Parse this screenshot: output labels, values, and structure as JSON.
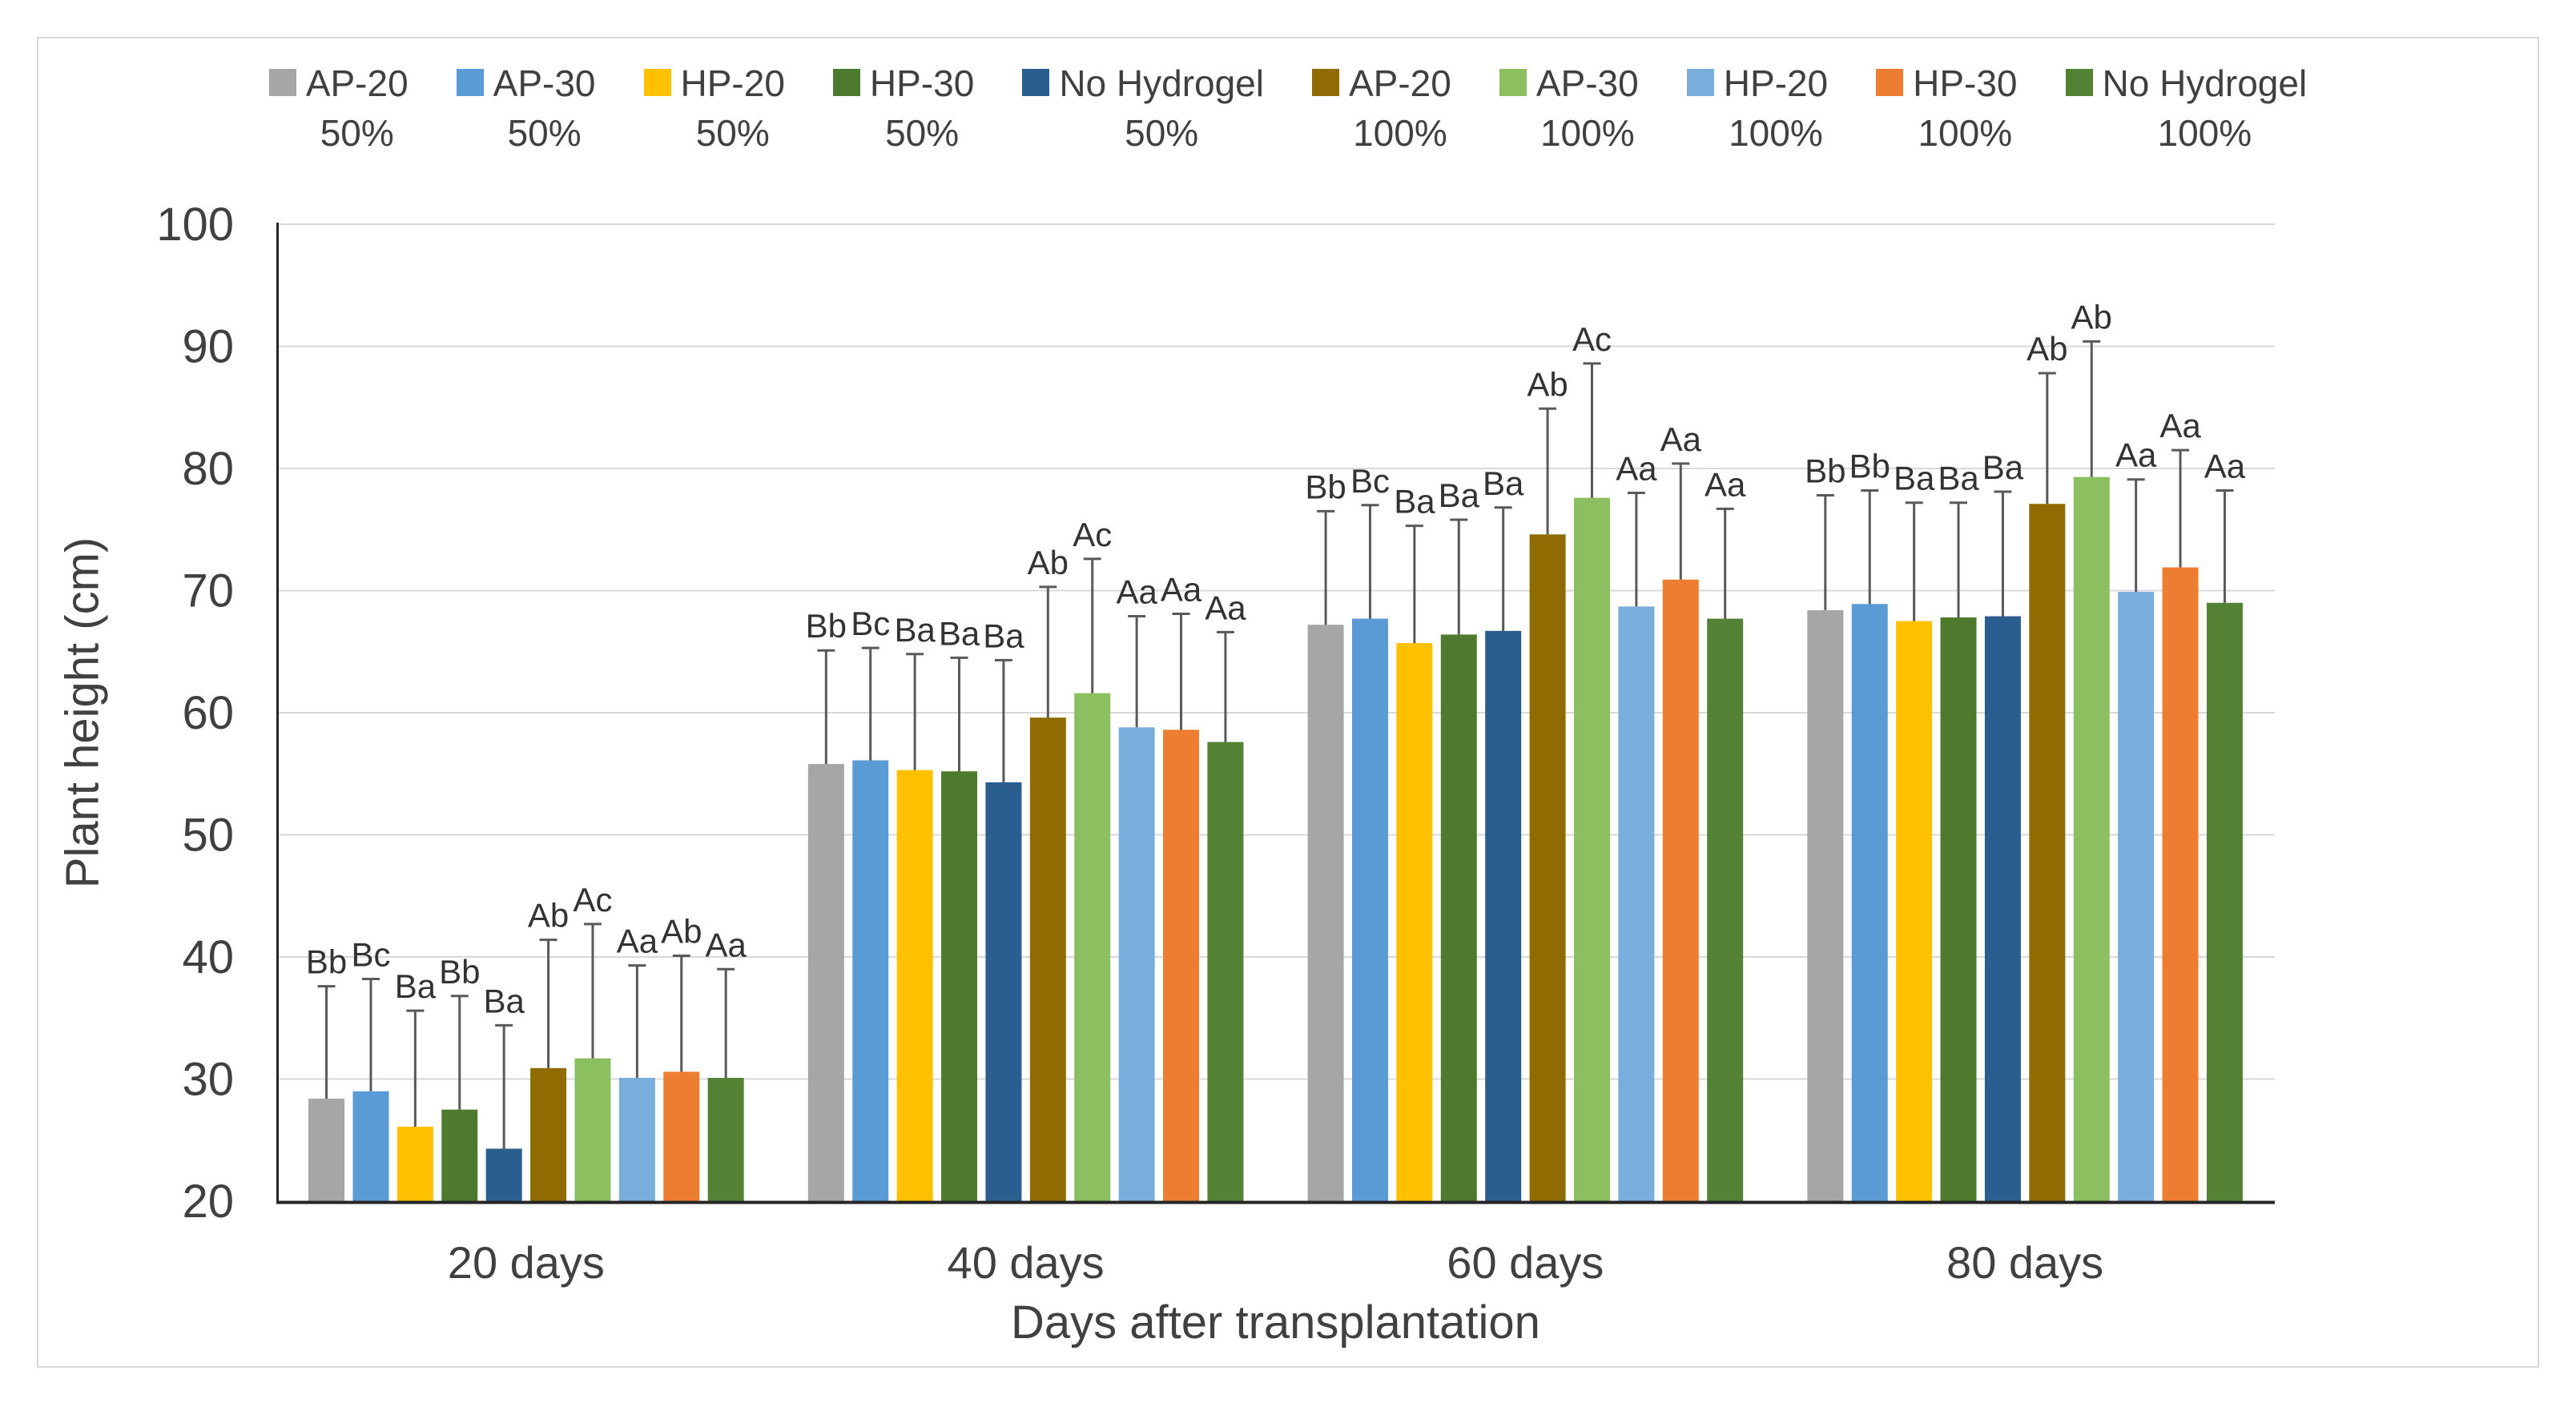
{
  "figure": {
    "background": "#FFFFFF",
    "border_color": "#D9D9D9"
  },
  "chart_data": {
    "type": "bar",
    "title": "",
    "xlabel": "Days after transplantation",
    "ylabel": "Plant height (cm)",
    "ylim": [
      20,
      100
    ],
    "y_ticks": [
      20,
      30,
      40,
      50,
      60,
      70,
      80,
      90,
      100
    ],
    "grid": "horizontal-major",
    "legend_position": "top",
    "error_bars": "plus-direction-with-cap",
    "categories": [
      "20 days",
      "40 days",
      "60 days",
      "80 days"
    ],
    "series": [
      {
        "name": "AP-20",
        "sub": "50%",
        "color": "#A6A6A6",
        "values": [
          28.4,
          55.8,
          67.2,
          68.4
        ],
        "errors": [
          9.2,
          9.3,
          9.3,
          9.4
        ],
        "letters": [
          "Bb",
          "Bb",
          "Bb",
          "Bb"
        ]
      },
      {
        "name": "AP-30",
        "sub": "50%",
        "color": "#5B9BD5",
        "values": [
          29.0,
          56.1,
          67.7,
          68.9
        ],
        "errors": [
          9.2,
          9.2,
          9.3,
          9.3
        ],
        "letters": [
          "Bc",
          "Bc",
          "Bc",
          "Bb"
        ]
      },
      {
        "name": "HP-20",
        "sub": "50%",
        "color": "#FFC000",
        "values": [
          26.1,
          55.3,
          65.7,
          67.5
        ],
        "errors": [
          9.5,
          9.5,
          9.6,
          9.7
        ],
        "letters": [
          "Ba",
          "Ba",
          "Ba",
          "Ba"
        ]
      },
      {
        "name": "HP-30",
        "sub": "50%",
        "color": "#4E7A2E",
        "values": [
          27.5,
          55.2,
          66.4,
          67.8
        ],
        "errors": [
          9.3,
          9.3,
          9.4,
          9.4
        ],
        "letters": [
          "Bb",
          "Ba",
          "Ba",
          "Ba"
        ]
      },
      {
        "name": "No Hydrogel",
        "sub": "50%",
        "color": "#2A5E8E",
        "values": [
          24.3,
          54.3,
          66.7,
          67.9
        ],
        "errors": [
          10.1,
          10.0,
          10.1,
          10.2
        ],
        "letters": [
          "Ba",
          "Ba",
          "Ba",
          "Ba"
        ]
      },
      {
        "name": "AP-20",
        "sub": "100%",
        "color": "#8F6B02",
        "values": [
          30.9,
          59.6,
          74.6,
          77.1
        ],
        "errors": [
          10.5,
          10.7,
          10.3,
          10.7
        ],
        "letters": [
          "Ab",
          "Ab",
          "Ab",
          "Ab"
        ]
      },
      {
        "name": "AP-30",
        "sub": "100%",
        "color": "#8BBF60",
        "values": [
          31.7,
          61.6,
          77.6,
          79.3
        ],
        "errors": [
          11.0,
          11.0,
          11.0,
          11.1
        ],
        "letters": [
          "Ac",
          "Ac",
          "Ac",
          "Ab"
        ]
      },
      {
        "name": "HP-20",
        "sub": "100%",
        "color": "#79ADDC",
        "values": [
          30.1,
          58.8,
          68.7,
          69.9
        ],
        "errors": [
          9.2,
          9.1,
          9.3,
          9.2
        ],
        "letters": [
          "Aa",
          "Aa",
          "Aa",
          "Aa"
        ]
      },
      {
        "name": "HP-30",
        "sub": "100%",
        "color": "#ED7D31",
        "values": [
          30.6,
          58.6,
          70.9,
          71.9
        ],
        "errors": [
          9.5,
          9.5,
          9.5,
          9.6
        ],
        "letters": [
          "Ab",
          "Aa",
          "Aa",
          "Aa"
        ]
      },
      {
        "name": "No Hydrogel",
        "sub": "100%",
        "color": "#538234",
        "values": [
          30.1,
          57.6,
          67.7,
          69.0
        ],
        "errors": [
          8.9,
          9.0,
          9.0,
          9.2
        ],
        "letters": [
          "Aa",
          "Aa",
          "Aa",
          "Aa"
        ]
      }
    ],
    "style": {
      "grid_color": "#D9D9D9",
      "axis_color": "#262626",
      "error_bar_color": "#595959",
      "tick_text_color": "#404040",
      "letter_label_color": "#333333"
    }
  }
}
